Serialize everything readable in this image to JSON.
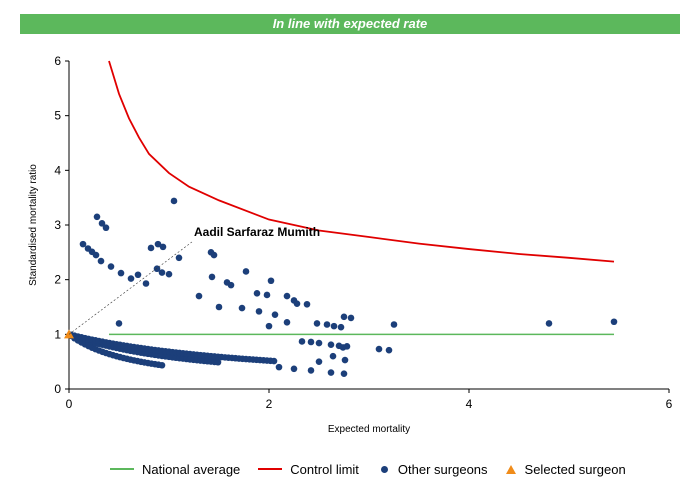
{
  "colors": {
    "banner": "#5cb85c",
    "national_average": "#5cb85c",
    "control_limit": "#e00000",
    "other_surgeons": "#1c3f7a",
    "selected_surgeon": "#f08c1a"
  },
  "chart_data": {
    "type": "scatter",
    "title": "In line with expected rate",
    "xlabel": "Expected mortality",
    "ylabel": "Standardised mortality ratio",
    "xlim": [
      0,
      6
    ],
    "ylim": [
      0,
      6
    ],
    "xticks": [
      0,
      2,
      4,
      6
    ],
    "yticks": [
      0,
      1,
      2,
      3,
      4,
      5,
      6
    ],
    "grid": false,
    "legend_position": "bottom",
    "annotation": {
      "text": "Aadil Sarfaraz Mumith",
      "x": 1.25,
      "y": 2.8
    },
    "national_average": {
      "name": "National average",
      "x": [
        0.4,
        5.45
      ],
      "y": [
        1,
        1
      ]
    },
    "control_limit": {
      "name": "Control limit",
      "x": [
        0.4,
        0.5,
        0.6,
        0.7,
        0.8,
        1.0,
        1.2,
        1.5,
        2.0,
        2.5,
        3.0,
        3.5,
        4.0,
        4.5,
        5.0,
        5.45
      ],
      "y": [
        6.0,
        5.4,
        4.95,
        4.6,
        4.3,
        3.95,
        3.7,
        3.45,
        3.1,
        2.9,
        2.78,
        2.66,
        2.56,
        2.47,
        2.4,
        2.33
      ]
    },
    "selected_surgeon": {
      "name": "Selected surgeon",
      "x": [
        0.0
      ],
      "y": [
        1.0
      ]
    },
    "other_surgeons": {
      "name": "Other surgeons",
      "x": [
        1.05,
        0.28,
        0.33,
        0.37,
        0.14,
        0.19,
        0.23,
        0.27,
        0.32,
        0.42,
        0.52,
        0.62,
        0.69,
        0.77,
        0.82,
        0.89,
        0.94,
        1.1,
        0.88,
        0.93,
        1.42,
        1.45,
        1.43,
        1.58,
        1.62,
        1.77,
        1.88,
        1.98,
        2.02,
        2.18,
        2.25,
        2.28,
        2.38,
        2.48,
        2.58,
        2.65,
        2.72,
        2.75,
        2.82,
        3.25,
        1.73,
        1.9,
        2.06,
        2.18,
        2.33,
        2.42,
        2.5,
        2.62,
        2.7,
        2.74,
        2.78,
        2.64,
        2.76,
        3.1,
        3.2,
        2.1,
        2.25,
        2.42,
        2.62,
        2.75,
        4.8,
        5.45,
        1.3,
        1.5,
        1.0,
        2.5,
        2.0,
        1.0,
        0.5
      ],
      "y": [
        3.44,
        3.15,
        3.03,
        2.95,
        2.65,
        2.57,
        2.51,
        2.45,
        2.34,
        2.24,
        2.12,
        2.02,
        2.09,
        1.93,
        2.58,
        2.65,
        2.6,
        2.4,
        2.2,
        2.13,
        2.5,
        2.45,
        2.05,
        1.95,
        1.9,
        2.15,
        1.75,
        1.72,
        1.98,
        1.7,
        1.62,
        1.56,
        1.55,
        1.2,
        1.18,
        1.15,
        1.13,
        1.32,
        1.3,
        1.18,
        1.48,
        1.42,
        1.36,
        1.22,
        0.87,
        0.86,
        0.84,
        0.81,
        0.79,
        0.76,
        0.78,
        0.6,
        0.53,
        0.73,
        0.71,
        0.4,
        0.37,
        0.34,
        0.3,
        0.28,
        1.2,
        1.23,
        1.7,
        1.5,
        2.1,
        0.5,
        1.15,
        0.6,
        1.2
      ]
    }
  }
}
